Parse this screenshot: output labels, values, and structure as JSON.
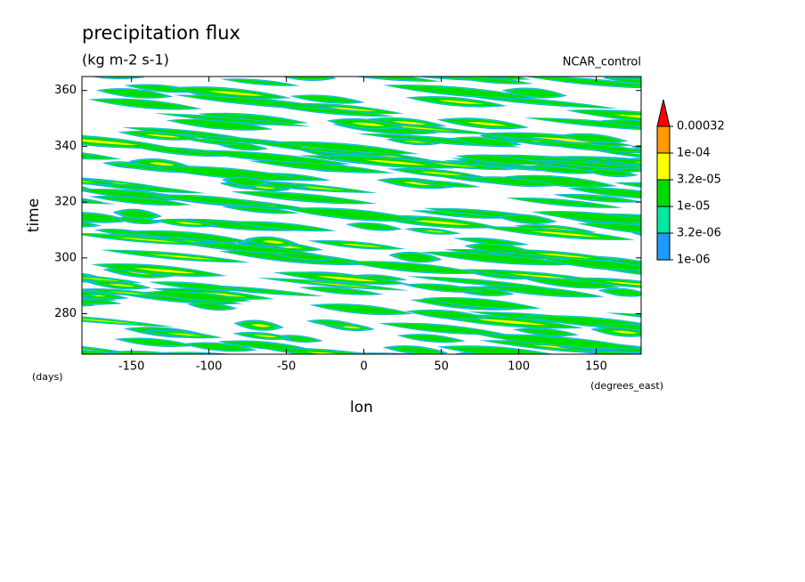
{
  "chart_data": {
    "type": "contour",
    "title": "precipitation flux",
    "subtitle": "(kg m-2 s-1)",
    "annotation": "NCAR_control",
    "x_label": "lon",
    "x_units": "(degrees_east)",
    "y_label": "time",
    "y_units": "(days)",
    "xlim": [
      -182,
      179
    ],
    "xticks": [
      -150,
      -100,
      -50,
      0,
      50,
      100,
      150
    ],
    "ylim": [
      265.5,
      365
    ],
    "yticks": [
      280,
      300,
      320,
      340,
      360
    ],
    "levels": [
      {
        "value": 1e-06,
        "label": "1e-06"
      },
      {
        "value": 3.2e-06,
        "label": "3.2e-06"
      },
      {
        "value": 1e-05,
        "label": "1e-05"
      },
      {
        "value": 3.2e-05,
        "label": "3.2e-05"
      },
      {
        "value": 0.0001,
        "label": "1e-04"
      },
      0.00032
    ],
    "level_colors": [
      "#1e9bff",
      "#00e8a0",
      "#00dc00",
      "#ffff00",
      "#ff9900",
      "#ff0000"
    ]
  }
}
